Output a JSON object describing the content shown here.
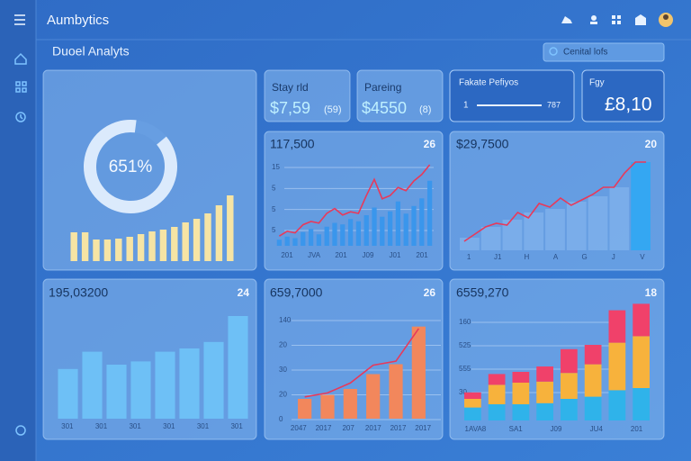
{
  "header": {
    "title": "Aumbytics"
  },
  "subtitle": "Duoel Analyts",
  "search": "Cenital lofs",
  "stats": [
    {
      "label": "Stay rld",
      "value": "$7,59",
      "note": "(59)"
    },
    {
      "label": "Pareing",
      "value": "$4550",
      "note": "(8)"
    },
    {
      "label": "Fakate Pefiyos",
      "start": "1",
      "end": "787"
    },
    {
      "label": "Fgy",
      "value": "£8,10"
    }
  ],
  "overview": {
    "donut_label": "651%",
    "donut_value": 88,
    "values": [
      32,
      32,
      24,
      24,
      25,
      27,
      30,
      33,
      35,
      38,
      43,
      47,
      53,
      62,
      73
    ]
  },
  "trend": {
    "title": "117,500",
    "badge": "26",
    "y_labels": [
      "15",
      "5",
      "5",
      "5"
    ],
    "x_labels": [
      "201",
      "JVA",
      "201",
      "J09",
      "J01",
      "201"
    ],
    "bars": [
      8,
      12,
      10,
      18,
      22,
      15,
      25,
      30,
      28,
      35,
      32,
      40,
      50,
      38,
      45,
      58,
      42,
      52,
      62,
      85
    ],
    "line": [
      12,
      18,
      16,
      26,
      30,
      28,
      40,
      46,
      38,
      42,
      40,
      62,
      82,
      58,
      62,
      72,
      68,
      80,
      88,
      100
    ]
  },
  "area": {
    "title": "$29,7500",
    "badge": "20",
    "x_labels": [
      "1",
      "J1",
      "H",
      "A",
      "G",
      "J",
      "V"
    ],
    "columns": [
      14,
      26,
      34,
      42,
      46,
      54,
      60,
      70,
      98
    ],
    "line": [
      10,
      18,
      26,
      30,
      28,
      42,
      36,
      52,
      48,
      58,
      50,
      56,
      62,
      70,
      70,
      86,
      98,
      98
    ]
  },
  "weekly": {
    "title": "195,03200",
    "badge": "24",
    "x_labels": [
      "301",
      "301",
      "301",
      "301",
      "301",
      "301"
    ],
    "values": [
      46,
      62,
      50,
      53,
      62,
      65,
      71,
      95
    ]
  },
  "growth": {
    "title": "659,7000",
    "badge": "26",
    "y_labels": [
      "140",
      "20",
      "30",
      "20",
      "0"
    ],
    "x_labels": [
      "2047",
      "2017",
      "207",
      "2017",
      "2017",
      "2017"
    ],
    "bars": [
      20,
      24,
      30,
      45,
      55,
      93
    ],
    "line": [
      22,
      26,
      36,
      54,
      58,
      91
    ]
  },
  "stacked": {
    "title": "6559,270",
    "badge": "18",
    "y_labels": [
      "160",
      "525",
      "555",
      "30"
    ],
    "x_labels": [
      "1AVA8",
      "SA1",
      "J09",
      "JU4",
      "201"
    ],
    "colors": [
      "#2fb3ea",
      "#f7b23c",
      "#f0416a"
    ],
    "series": [
      [
        12,
        15,
        15,
        16,
        20,
        22,
        28,
        30
      ],
      [
        8,
        18,
        20,
        20,
        24,
        30,
        44,
        48
      ],
      [
        6,
        10,
        10,
        14,
        22,
        18,
        30,
        30
      ]
    ]
  }
}
